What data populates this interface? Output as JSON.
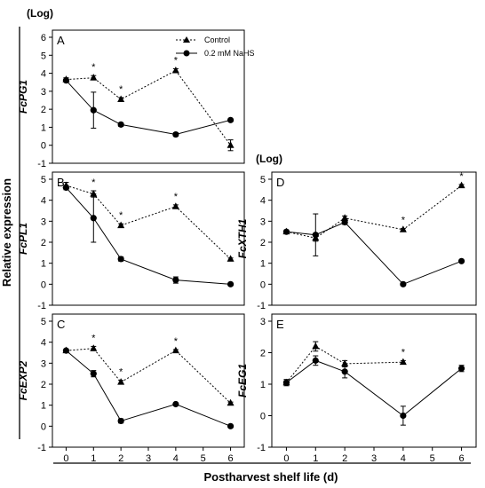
{
  "figure": {
    "xlabel": "Postharvest shelf life (d)",
    "ylabel": "Relative expression",
    "log_label": "(Log)",
    "x_ticks": [
      0,
      1,
      2,
      3,
      4,
      5,
      6
    ]
  },
  "legend": {
    "entries": [
      {
        "name": "Control",
        "style": "dashed-triangle"
      },
      {
        "name": "0.2 mM NaHS",
        "style": "solid-circle"
      }
    ]
  },
  "chart_data": [
    {
      "type": "line",
      "panel": "A",
      "ylabel": "FcPG1",
      "ylim": [
        -1,
        6
      ],
      "y_ticks": [
        -1,
        0,
        1,
        2,
        3,
        4,
        5,
        6
      ],
      "series": [
        {
          "name": "Control",
          "x": [
            0,
            1,
            2,
            4,
            6
          ],
          "values": [
            3.65,
            3.75,
            2.55,
            4.15,
            0.0
          ],
          "errors": [
            0.1,
            0.12,
            0.1,
            0.1,
            0.3
          ]
        },
        {
          "name": "0.2 mM NaHS",
          "x": [
            0,
            1,
            2,
            4,
            6
          ],
          "values": [
            3.6,
            1.95,
            1.15,
            0.6,
            1.4
          ],
          "errors": [
            0.05,
            1.0,
            0.1,
            0.1,
            0.05
          ]
        }
      ],
      "annotations": [
        {
          "x": 1,
          "text": "*"
        },
        {
          "x": 2,
          "text": "*"
        },
        {
          "x": 4,
          "text": "*"
        }
      ]
    },
    {
      "type": "line",
      "panel": "B",
      "ylabel": "FcPL1",
      "ylim": [
        -1,
        5
      ],
      "y_ticks": [
        -1,
        0,
        1,
        2,
        3,
        4,
        5
      ],
      "series": [
        {
          "name": "Control",
          "x": [
            0,
            1,
            2,
            4,
            6
          ],
          "values": [
            4.7,
            4.3,
            2.8,
            3.7,
            1.2
          ],
          "errors": [
            0.15,
            0.15,
            0.08,
            0.08,
            0.05
          ]
        },
        {
          "name": "0.2 mM NaHS",
          "x": [
            0,
            1,
            2,
            4,
            6
          ],
          "values": [
            4.6,
            3.15,
            1.2,
            0.2,
            0.0
          ],
          "errors": [
            0.1,
            1.15,
            0.1,
            0.15,
            0.03
          ]
        }
      ],
      "annotations": [
        {
          "x": 1,
          "text": "*"
        },
        {
          "x": 2,
          "text": "*"
        },
        {
          "x": 4,
          "text": "*"
        }
      ]
    },
    {
      "type": "line",
      "panel": "C",
      "ylabel": "FcEXP2",
      "ylim": [
        -1,
        5
      ],
      "y_ticks": [
        -1,
        0,
        1,
        2,
        3,
        4,
        5
      ],
      "series": [
        {
          "name": "Control",
          "x": [
            0,
            1,
            2,
            4,
            6
          ],
          "values": [
            3.6,
            3.7,
            2.1,
            3.6,
            1.1
          ],
          "errors": [
            0.05,
            0.1,
            0.08,
            0.05,
            0.05
          ]
        },
        {
          "name": "0.2 mM NaHS",
          "x": [
            0,
            1,
            2,
            4,
            6
          ],
          "values": [
            3.6,
            2.5,
            0.25,
            1.05,
            0.0
          ],
          "errors": [
            0.05,
            0.15,
            0.1,
            0.05,
            0.03
          ]
        }
      ],
      "annotations": [
        {
          "x": 1,
          "text": "*"
        },
        {
          "x": 2,
          "text": "*"
        },
        {
          "x": 4,
          "text": "*"
        }
      ]
    },
    {
      "type": "line",
      "panel": "D",
      "ylabel": "FcXTH1",
      "ylim": [
        -1,
        5
      ],
      "y_ticks": [
        -1,
        0,
        1,
        2,
        3,
        4,
        5
      ],
      "series": [
        {
          "name": "Control",
          "x": [
            0,
            1,
            2,
            4,
            6
          ],
          "values": [
            2.5,
            2.2,
            3.15,
            2.6,
            4.7
          ],
          "errors": [
            0.05,
            0.15,
            0.1,
            0.05,
            0.05
          ]
        },
        {
          "name": "0.2 mM NaHS",
          "x": [
            0,
            1,
            2,
            4,
            6
          ],
          "values": [
            2.5,
            2.35,
            2.95,
            0.0,
            1.1
          ],
          "errors": [
            0.05,
            1.0,
            0.1,
            0.05,
            0.03
          ]
        }
      ],
      "annotations": [
        {
          "x": 4,
          "text": "*"
        },
        {
          "x": 6,
          "text": "*"
        }
      ]
    },
    {
      "type": "line",
      "panel": "E",
      "ylabel": "FcEG1",
      "ylim": [
        -1,
        3
      ],
      "y_ticks": [
        -1,
        0,
        1,
        2,
        3
      ],
      "series": [
        {
          "name": "Control",
          "x": [
            0,
            1,
            2,
            4
          ],
          "values": [
            1.05,
            2.2,
            1.65,
            1.7
          ],
          "errors": [
            0.05,
            0.15,
            0.1,
            0.05
          ]
        },
        {
          "name": "0.2 mM NaHS",
          "x": [
            0,
            1,
            2,
            4,
            6
          ],
          "values": [
            1.05,
            1.75,
            1.4,
            0.0,
            1.5
          ],
          "errors": [
            0.1,
            0.15,
            0.2,
            0.3,
            0.1
          ]
        }
      ],
      "annotations": [
        {
          "x": 4,
          "text": "*"
        }
      ]
    }
  ]
}
